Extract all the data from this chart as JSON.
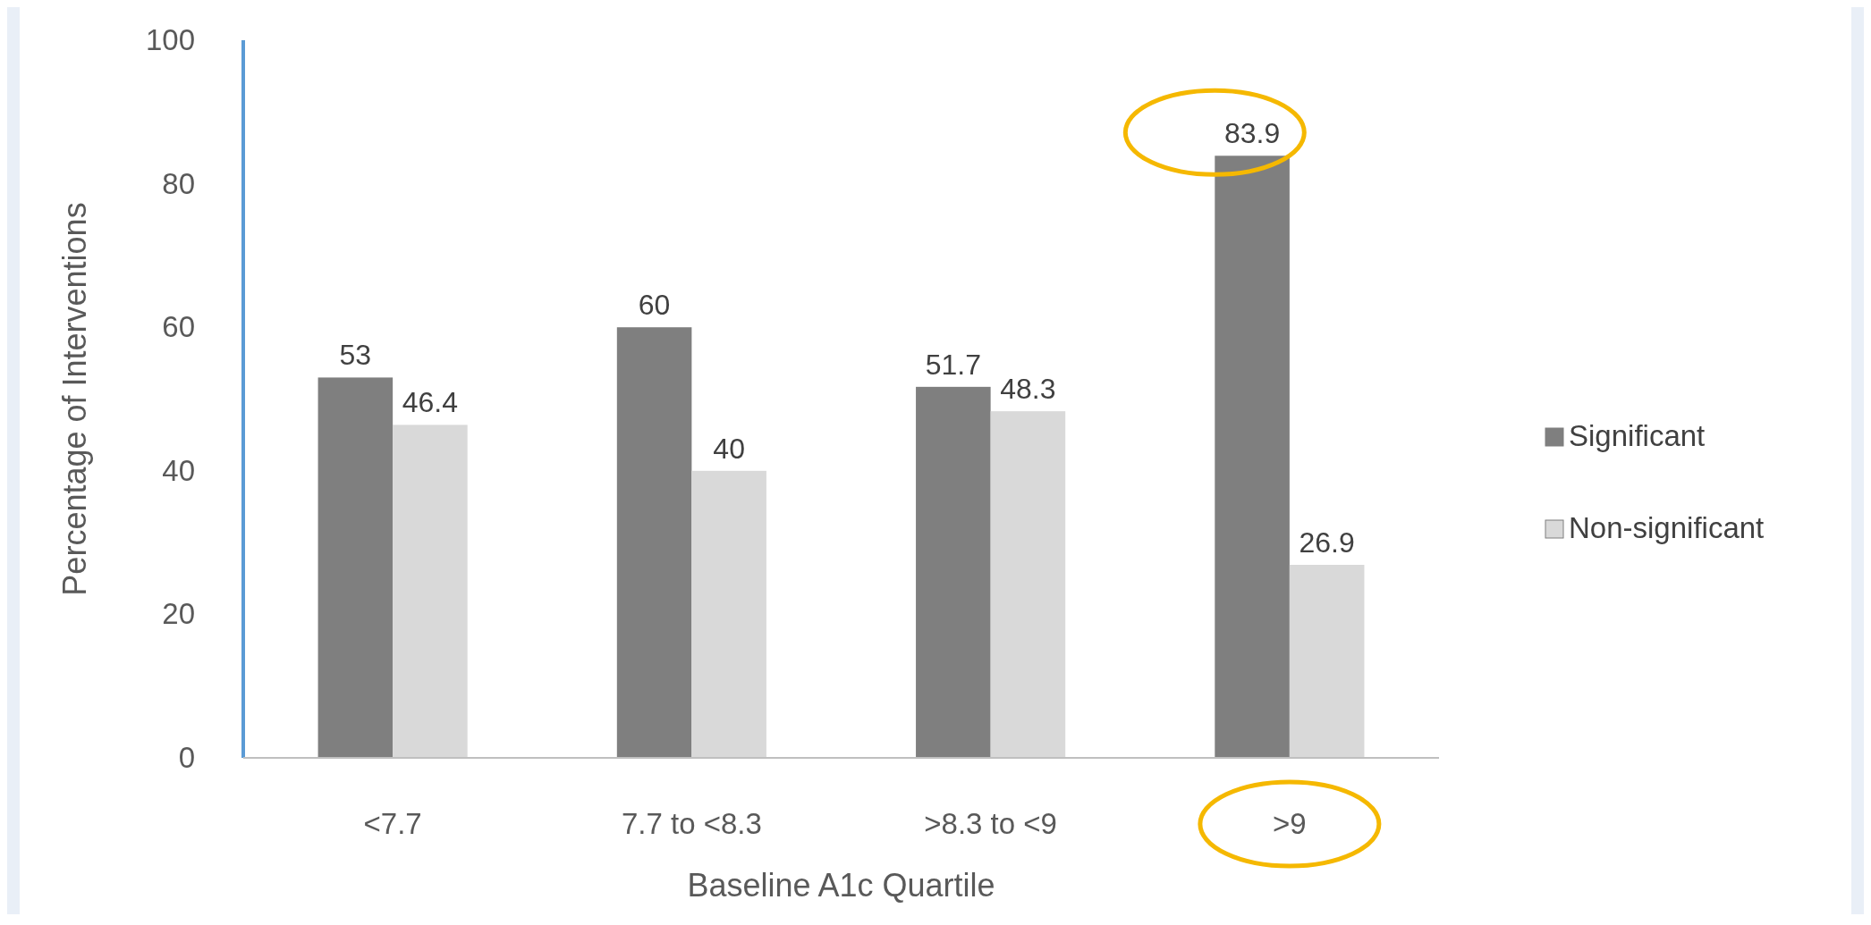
{
  "chart_data": {
    "type": "bar",
    "xlabel": "Baseline A1c Quartile",
    "ylabel": "Percentage of Interventions",
    "categories": [
      "<7.7",
      "7.7 to <8.3",
      ">8.3 to <9",
      ">9"
    ],
    "series": [
      {
        "name": "Significant",
        "color": "#7f7f7f",
        "values": [
          53,
          60,
          51.7,
          83.9
        ]
      },
      {
        "name": "Non-significant",
        "color": "#d9d9d9",
        "values": [
          46.4,
          40,
          48.3,
          26.9
        ]
      }
    ],
    "ylim": [
      0,
      100
    ],
    "yticks": [
      0,
      20,
      40,
      60,
      80,
      100
    ],
    "grid": false,
    "legend": "right",
    "data_labels": true
  }
}
